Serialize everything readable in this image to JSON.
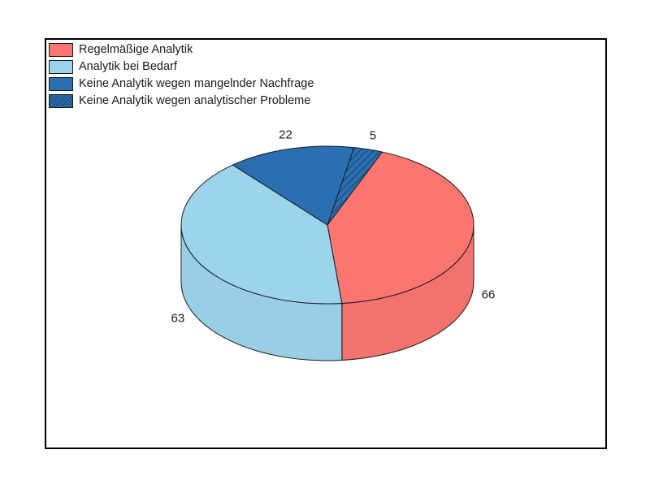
{
  "chart_data": {
    "type": "pie",
    "legend_position": "top-left",
    "slices": [
      {
        "label": "Regelmäßige Analytik",
        "value": 66,
        "value_label": "66",
        "color": "#fc7671",
        "hatched": false
      },
      {
        "label": "Analytik bei Bedarf",
        "value": 63,
        "value_label": "63",
        "color": "#9dd4ed",
        "hatched": false
      },
      {
        "label": "Keine Analytik wegen mangelnder Nachfrage",
        "value": 22,
        "value_label": "22",
        "color": "#2a6fb1",
        "hatched": false
      },
      {
        "label": "Keine Analytik wegen analytischer Probleme",
        "value": 5,
        "value_label": "5",
        "color": "#2a6fb1",
        "hatched": true
      }
    ]
  }
}
